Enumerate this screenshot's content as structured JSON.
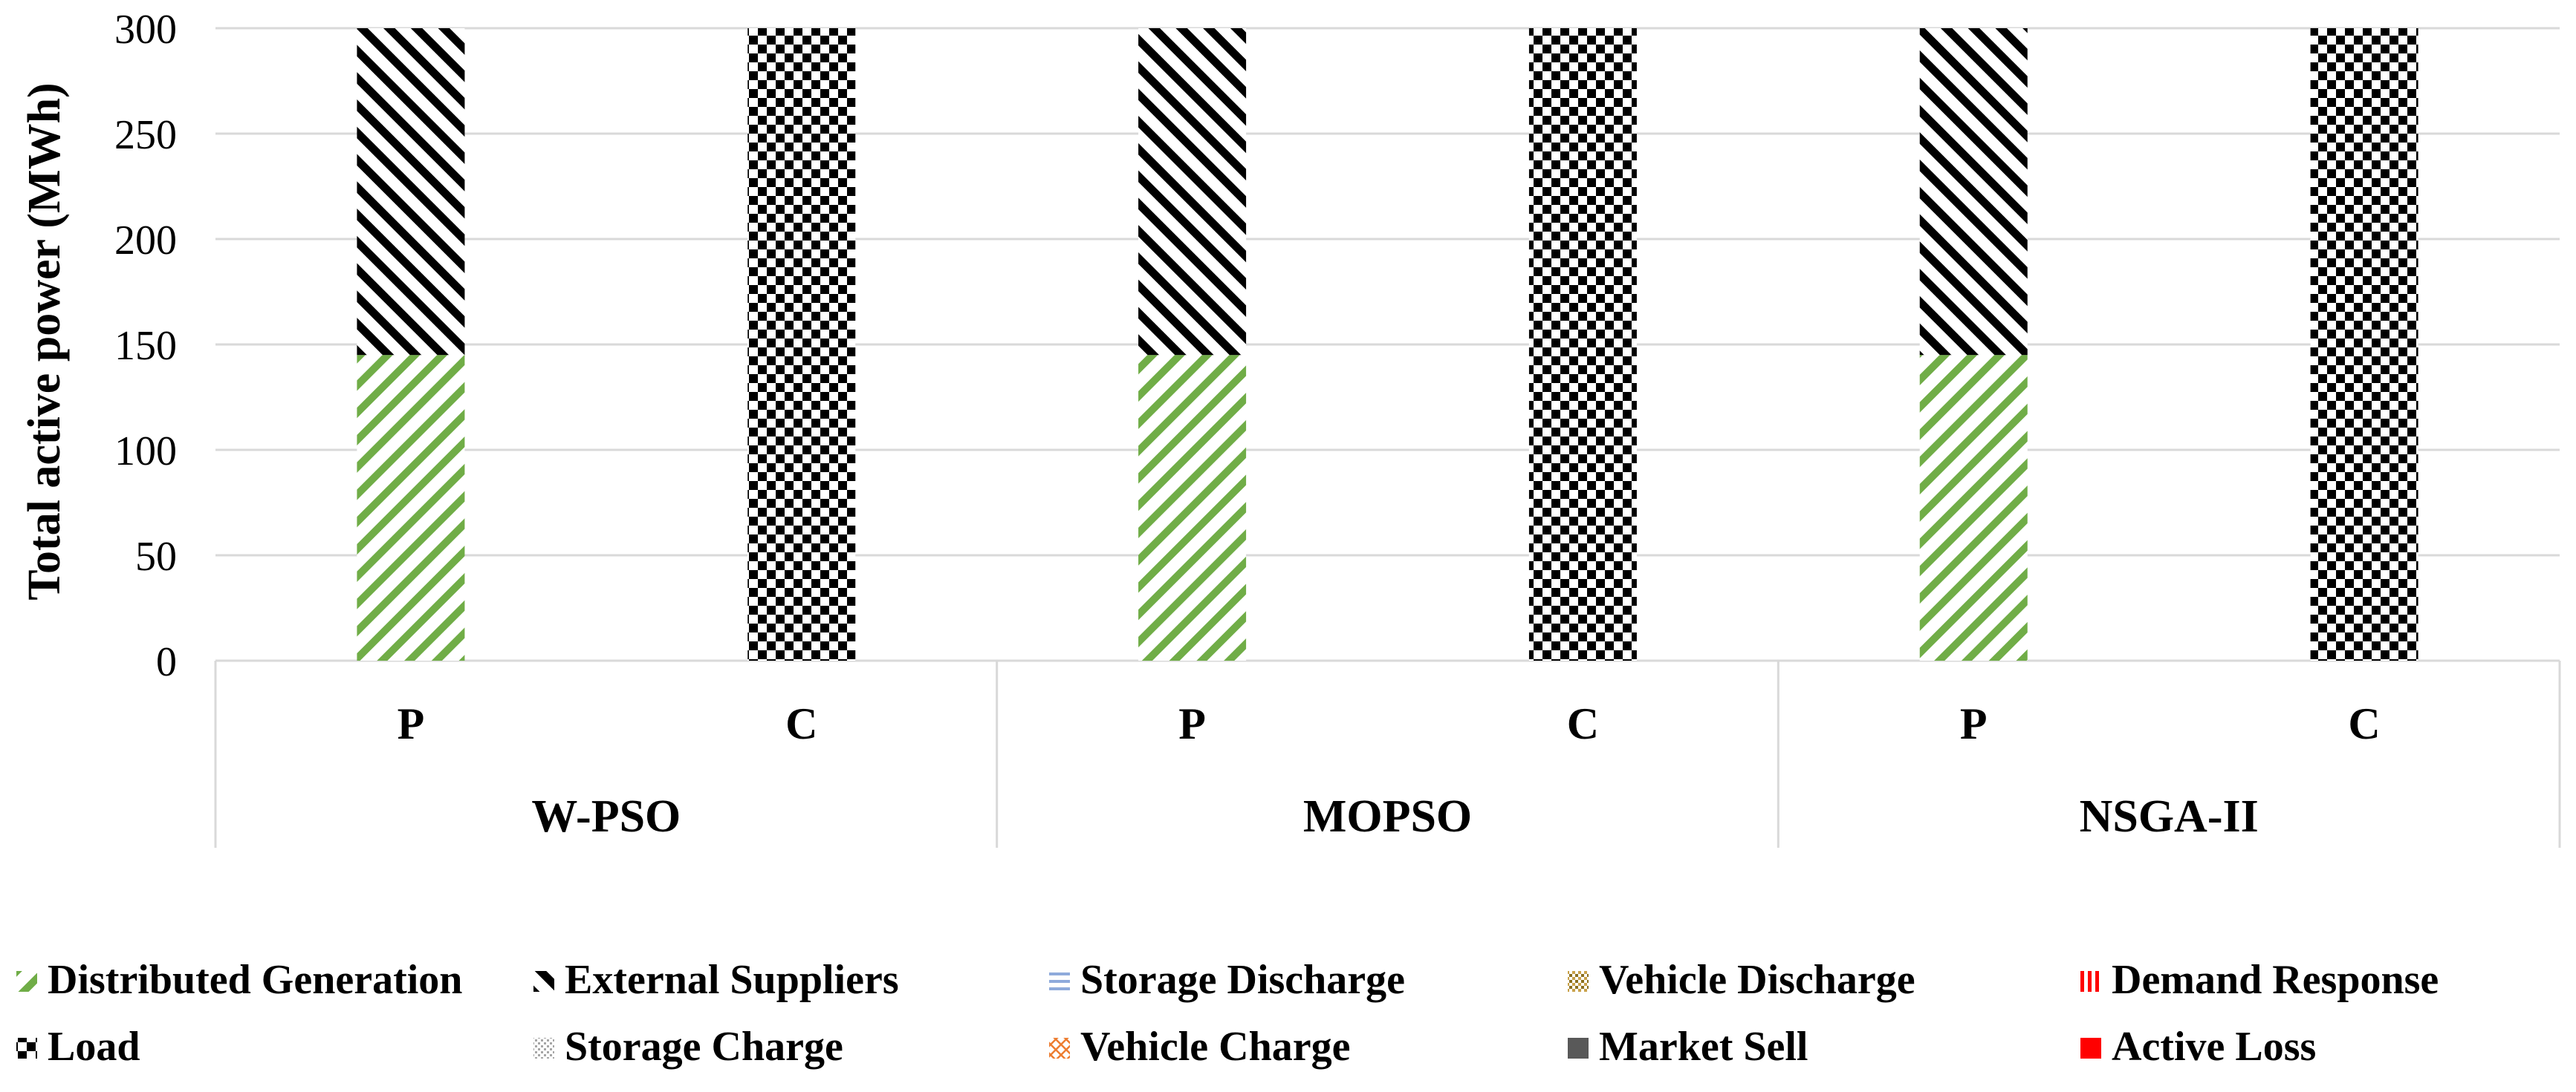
{
  "chart_data": {
    "type": "bar",
    "stacked": true,
    "title": "",
    "ylabel": "Total active power (MWh)",
    "xlabel": "",
    "ylim": [
      0,
      300
    ],
    "yticks": [
      0,
      50,
      100,
      150,
      200,
      250,
      300
    ],
    "grid": true,
    "legend_position": "bottom",
    "groups": [
      {
        "label": "W-PSO",
        "categories": [
          "P",
          "C"
        ]
      },
      {
        "label": "MOPSO",
        "categories": [
          "P",
          "C"
        ]
      },
      {
        "label": "NSGA-II",
        "categories": [
          "P",
          "C"
        ]
      }
    ],
    "series": [
      {
        "name": "Distributed Generation",
        "pattern": "diag-green",
        "color": "#70ad47",
        "values": [
          145,
          0,
          145,
          0,
          145,
          0
        ]
      },
      {
        "name": "External Suppliers",
        "pattern": "diag-black",
        "color": "#000000",
        "values": [
          155,
          0,
          155,
          0,
          155,
          0
        ]
      },
      {
        "name": "Storage Discharge",
        "pattern": "hlines-blue",
        "color": "#8eaadb",
        "values": [
          0,
          0,
          0,
          0,
          0,
          0
        ]
      },
      {
        "name": "Vehicle Discharge",
        "pattern": "dots-olive",
        "color": "#8b6f1e",
        "values": [
          0,
          0,
          0,
          0,
          0,
          0
        ]
      },
      {
        "name": "Demand Response",
        "pattern": "vlines-red",
        "color": "#ff0000",
        "values": [
          0,
          0,
          0,
          0,
          0,
          0
        ]
      },
      {
        "name": "Load",
        "pattern": "checker",
        "color": "#000000",
        "values": [
          0,
          300,
          0,
          300,
          0,
          300
        ]
      },
      {
        "name": "Storage Charge",
        "pattern": "dots-gray",
        "color": "#a6a6a6",
        "values": [
          0,
          0,
          0,
          0,
          0,
          0
        ]
      },
      {
        "name": "Vehicle Charge",
        "pattern": "wave-orange",
        "color": "#ed7d31",
        "values": [
          0,
          0,
          0,
          0,
          0,
          0
        ]
      },
      {
        "name": "Market Sell",
        "pattern": "solid-gray",
        "color": "#595959",
        "values": [
          0,
          0,
          0,
          0,
          0,
          0
        ]
      },
      {
        "name": "Active Loss",
        "pattern": "solid-red",
        "color": "#ff0000",
        "values": [
          0,
          0,
          0,
          0,
          0,
          0
        ]
      }
    ]
  }
}
